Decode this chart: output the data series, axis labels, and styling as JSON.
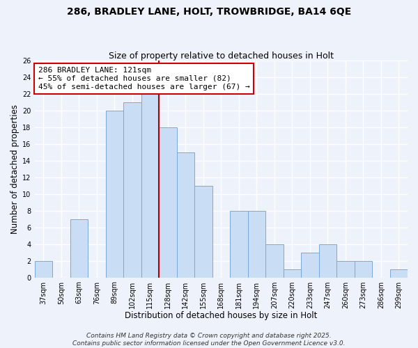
{
  "title_line1": "286, BRADLEY LANE, HOLT, TROWBRIDGE, BA14 6QE",
  "title_line2": "Size of property relative to detached houses in Holt",
  "xlabel": "Distribution of detached houses by size in Holt",
  "ylabel": "Number of detached properties",
  "bar_labels": [
    "37sqm",
    "50sqm",
    "63sqm",
    "76sqm",
    "89sqm",
    "102sqm",
    "115sqm",
    "128sqm",
    "142sqm",
    "155sqm",
    "168sqm",
    "181sqm",
    "194sqm",
    "207sqm",
    "220sqm",
    "233sqm",
    "247sqm",
    "260sqm",
    "273sqm",
    "286sqm",
    "299sqm"
  ],
  "bar_values": [
    2,
    0,
    7,
    0,
    20,
    21,
    22,
    18,
    15,
    11,
    0,
    8,
    8,
    4,
    1,
    3,
    4,
    2,
    2,
    0,
    1
  ],
  "bar_color": "#c9ddf5",
  "bar_edgecolor": "#7aa8d8",
  "vline_x": 7,
  "vline_color": "#aa0000",
  "annotation_text": "286 BRADLEY LANE: 121sqm\n← 55% of detached houses are smaller (82)\n45% of semi-detached houses are larger (67) →",
  "ylim": [
    0,
    26
  ],
  "yticks": [
    0,
    2,
    4,
    6,
    8,
    10,
    12,
    14,
    16,
    18,
    20,
    22,
    24,
    26
  ],
  "background_color": "#eef2fa",
  "grid_color": "#ffffff",
  "footer_text": "Contains HM Land Registry data © Crown copyright and database right 2025.\nContains public sector information licensed under the Open Government Licence v3.0.",
  "title_fontsize": 10,
  "subtitle_fontsize": 9,
  "axis_label_fontsize": 8.5,
  "tick_fontsize": 7,
  "annotation_fontsize": 8,
  "footer_fontsize": 6.5
}
